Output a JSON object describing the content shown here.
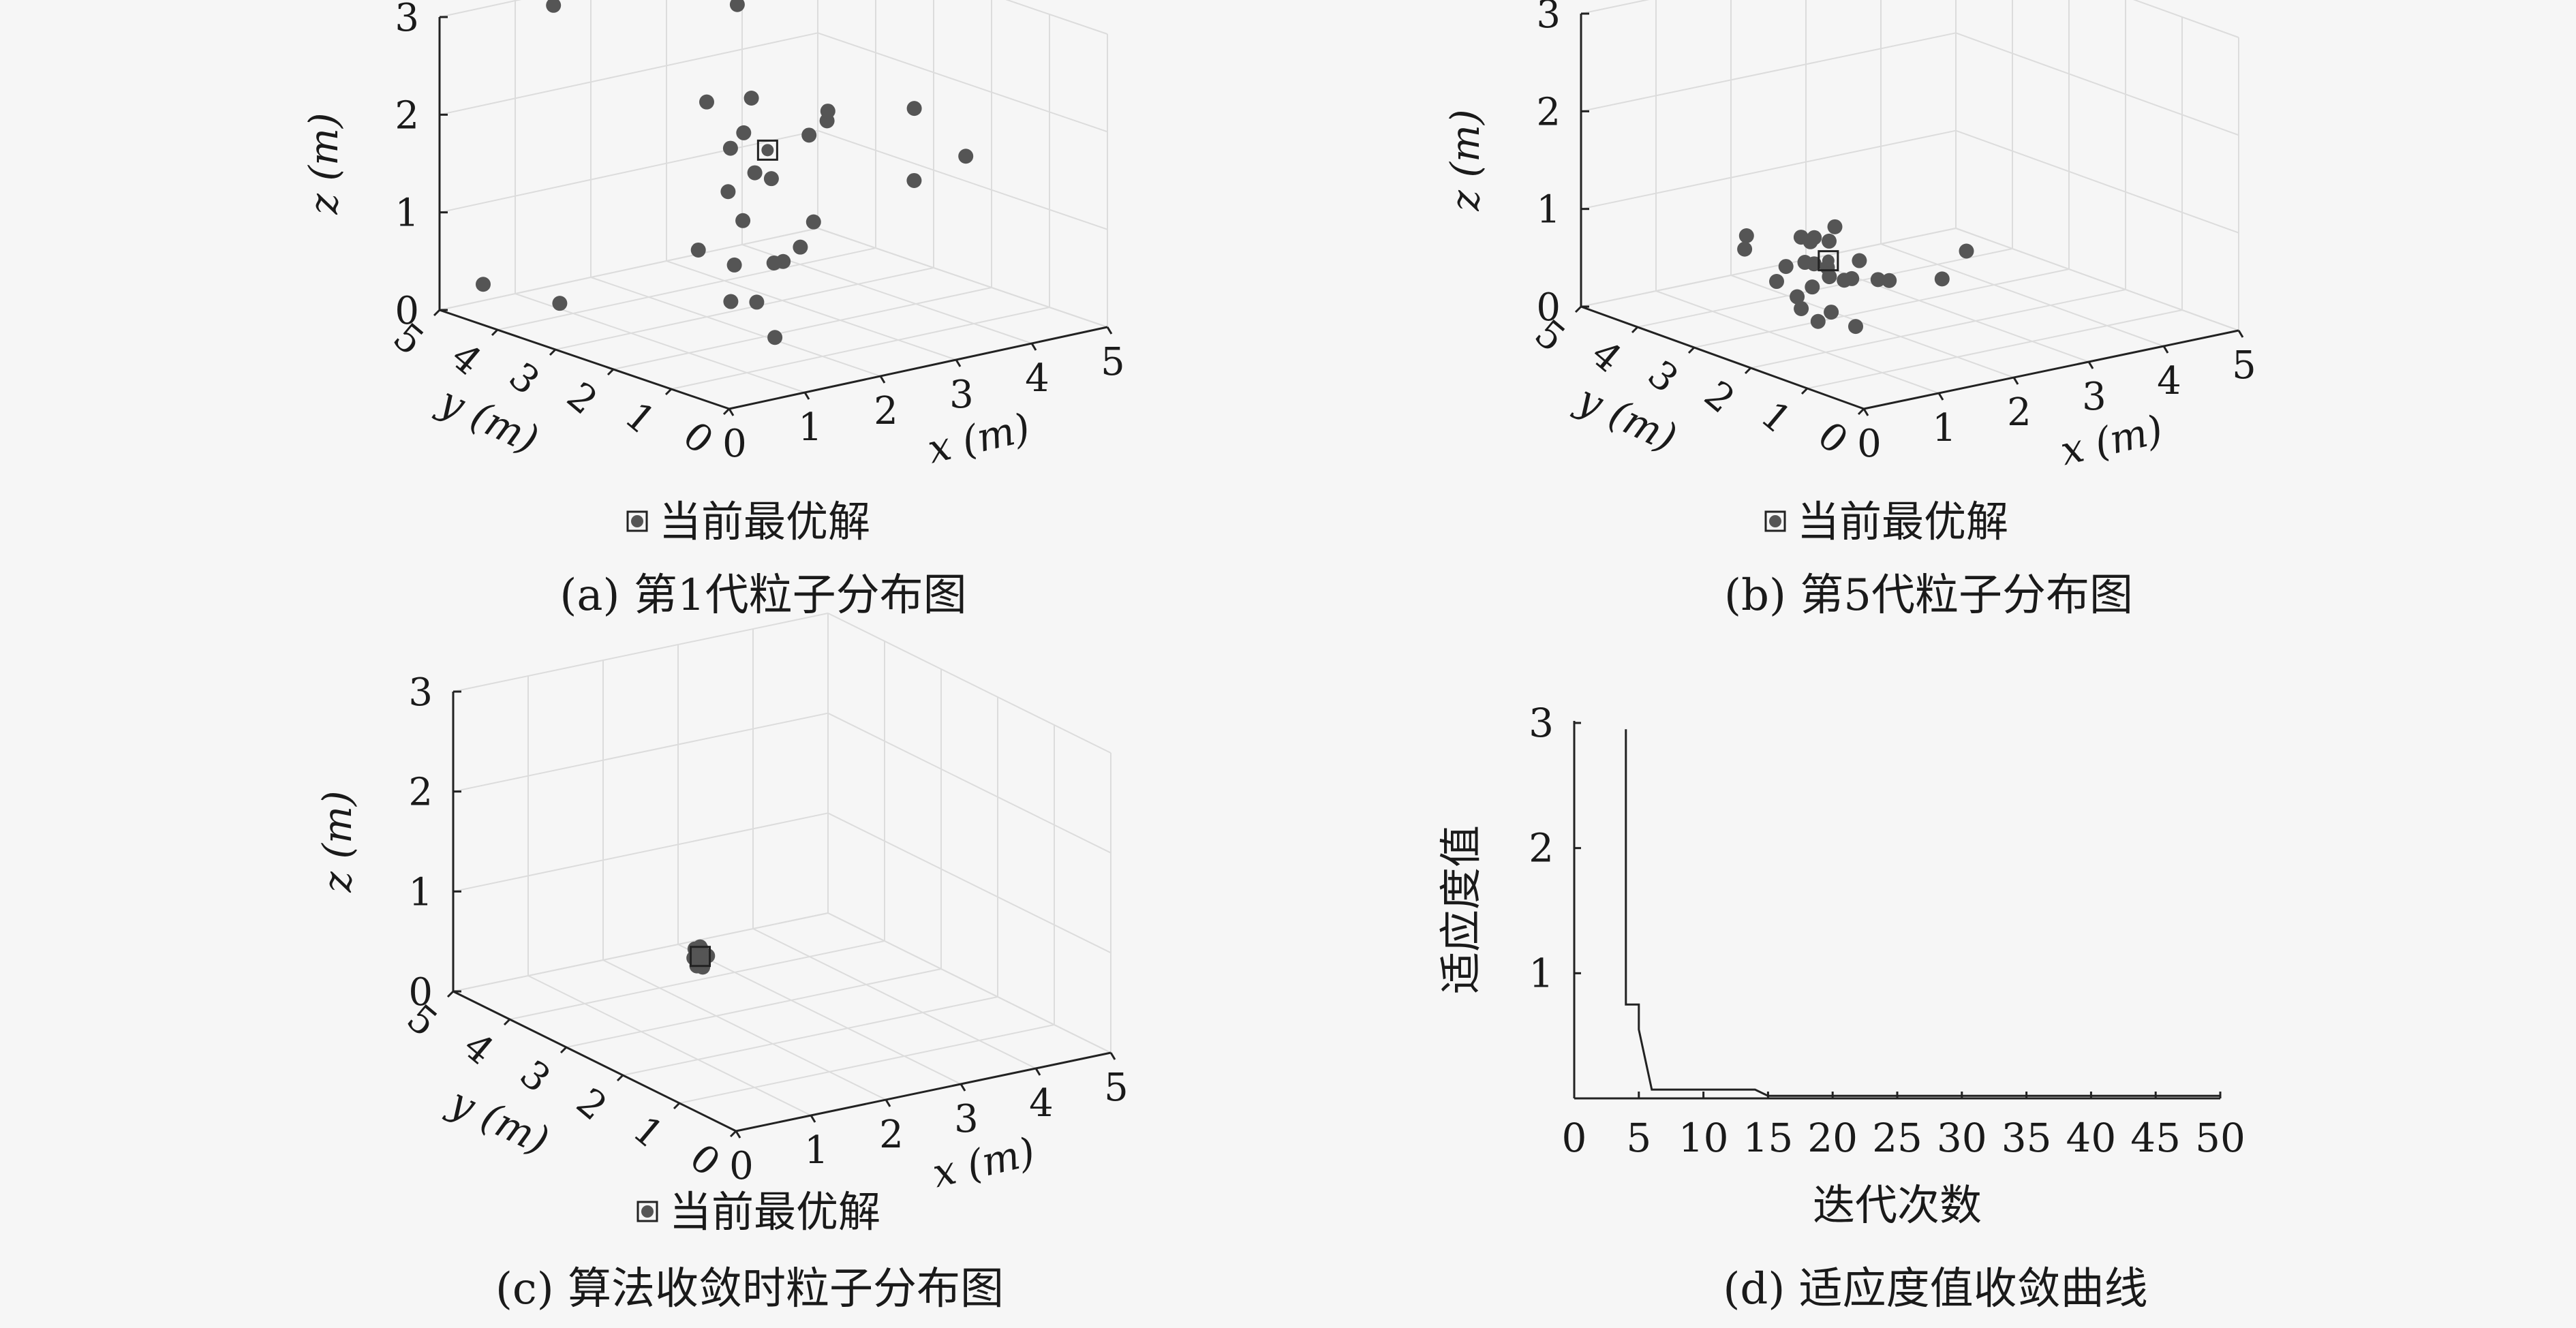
{
  "panels": [
    {
      "caption": "(a) 第1代粒子分布图",
      "legend": "当前最优解",
      "x_label": "x (m)",
      "y_label": "y (m)",
      "z_label": "z (m)",
      "ticks_xy": [
        "0",
        "1",
        "2",
        "3",
        "4",
        "5"
      ],
      "ticks_z": [
        "0",
        "1",
        "2",
        "3"
      ]
    },
    {
      "caption": "(b) 第5代粒子分布图",
      "legend": "当前最优解",
      "x_label": "x (m)",
      "y_label": "y (m)",
      "z_label": "z (m)",
      "ticks_xy": [
        "0",
        "1",
        "2",
        "3",
        "4",
        "5"
      ],
      "ticks_z": [
        "0",
        "1",
        "2",
        "3"
      ]
    },
    {
      "caption": "(c) 算法收敛时粒子分布图",
      "legend": "当前最优解",
      "x_label": "x (m)",
      "y_label": "y (m)",
      "z_label": "z (m)",
      "ticks_xy": [
        "0",
        "1",
        "2",
        "3",
        "4",
        "5"
      ],
      "ticks_z": [
        "0",
        "1",
        "2",
        "3"
      ]
    },
    {
      "caption": "(d) 适应度值收敛曲线",
      "x_label": "迭代次数",
      "y_label": "适应度值",
      "x_ticks": [
        "0",
        "5",
        "10",
        "15",
        "20",
        "25",
        "30",
        "35",
        "40",
        "45",
        "50"
      ],
      "y_ticks": [
        "1",
        "2",
        "3"
      ]
    }
  ],
  "chart_data": [
    {
      "type": "scatter",
      "title": "(a) 第1代粒子分布图",
      "xlabel": "x (m)",
      "ylabel": "y (m)",
      "zlabel": "z (m)",
      "xlim": [
        0,
        5
      ],
      "ylim": [
        0,
        5
      ],
      "zlim": [
        0,
        3
      ],
      "grid": true,
      "legend": "当前最优解",
      "colors": {
        "points": "#555555"
      },
      "points": [
        [
          1.2,
          4.6,
          3.0
        ],
        [
          3.4,
          4.3,
          2.7
        ],
        [
          1.6,
          0.4,
          2.6
        ],
        [
          2.3,
          1.3,
          2.4
        ],
        [
          2.6,
          0.2,
          2.6
        ],
        [
          0.6,
          0.4,
          3.0
        ],
        [
          0.4,
          0.5,
          2.5
        ],
        [
          2.0,
          3.0,
          2.2
        ],
        [
          1.8,
          2.1,
          2.1
        ],
        [
          3.2,
          2.8,
          1.7
        ],
        [
          1.4,
          1.1,
          1.9
        ],
        [
          1.1,
          1.2,
          1.5
        ],
        [
          2.1,
          2.3,
          1.6
        ],
        [
          2.8,
          2.2,
          1.0
        ],
        [
          0.9,
          0.7,
          0.8
        ],
        [
          1.6,
          2.0,
          0.8
        ],
        [
          0.5,
          4.9,
          0.2
        ],
        [
          1.9,
          2.5,
          1.4
        ],
        [
          1.2,
          2.1,
          1.0
        ],
        [
          1.4,
          0.6,
          1.3
        ],
        [
          3.7,
          3.9,
          0.1
        ],
        [
          0.9,
          4.1,
          0.1
        ],
        [
          1.4,
          1.8,
          0.5
        ],
        [
          2.2,
          2.1,
          0.7
        ],
        [
          1.6,
          1.3,
          0.2
        ],
        [
          4.2,
          1.4,
          1.6
        ],
        [
          3.9,
          1.9,
          1.3
        ]
      ],
      "best": [
        1.35,
        1.1,
        2.2
      ]
    },
    {
      "type": "scatter",
      "title": "(b) 第5代粒子分布图",
      "xlabel": "x (m)",
      "ylabel": "y (m)",
      "zlabel": "z (m)",
      "xlim": [
        0,
        5
      ],
      "ylim": [
        0,
        5
      ],
      "zlim": [
        0,
        3
      ],
      "grid": true,
      "legend": "当前最优解",
      "colors": {
        "points": "#555555"
      },
      "points": [
        [
          1.2,
          2.7,
          1.0
        ],
        [
          1.3,
          2.6,
          1.0
        ],
        [
          1.4,
          2.8,
          0.9
        ],
        [
          1.1,
          2.5,
          0.8
        ],
        [
          1.5,
          2.5,
          1.1
        ],
        [
          1.6,
          3.0,
          0.6
        ],
        [
          1.0,
          3.4,
          0.9
        ],
        [
          0.9,
          3.3,
          0.8
        ],
        [
          1.3,
          3.1,
          0.6
        ],
        [
          1.5,
          2.9,
          0.4
        ],
        [
          1.8,
          2.6,
          0.5
        ],
        [
          2.0,
          2.4,
          0.5
        ],
        [
          2.3,
          2.6,
          0.4
        ],
        [
          2.1,
          1.4,
          0.7
        ],
        [
          2.5,
          1.5,
          0.9
        ],
        [
          1.3,
          2.3,
          0.3
        ],
        [
          1.4,
          2.0,
          0.2
        ],
        [
          1.2,
          2.4,
          0.2
        ],
        [
          0.9,
          2.3,
          0.4
        ],
        [
          1.7,
          2.6,
          0.5
        ],
        [
          1.6,
          3.3,
          0.2
        ],
        [
          1.1,
          3.0,
          0.5
        ],
        [
          1.6,
          2.2,
          0.8
        ],
        [
          1.8,
          3.0,
          0.8
        ],
        [
          1.4,
          2.5,
          0.7
        ],
        [
          1.2,
          2.2,
          0.7
        ]
      ],
      "best": [
        1.45,
        2.55,
        0.75
      ]
    },
    {
      "type": "scatter",
      "title": "(c) 算法收敛时粒子分布图",
      "xlabel": "x (m)",
      "ylabel": "y (m)",
      "zlabel": "z (m)",
      "xlim": [
        0,
        5
      ],
      "ylim": [
        0,
        5
      ],
      "zlim": [
        0,
        3
      ],
      "grid": true,
      "legend": "当前最优解",
      "colors": {
        "points": "#555555"
      },
      "points": [
        [
          1.47,
          2.62,
          0.78
        ],
        [
          1.52,
          2.58,
          0.8
        ],
        [
          1.5,
          2.65,
          0.74
        ],
        [
          1.44,
          2.6,
          0.7
        ],
        [
          1.55,
          2.63,
          0.76
        ],
        [
          1.48,
          2.55,
          0.82
        ],
        [
          1.53,
          2.68,
          0.72
        ],
        [
          1.46,
          2.66,
          0.85
        ],
        [
          1.51,
          2.59,
          0.68
        ],
        [
          1.49,
          2.61,
          0.88
        ],
        [
          1.56,
          2.57,
          0.79
        ],
        [
          1.43,
          2.64,
          0.77
        ],
        [
          1.54,
          2.66,
          0.84
        ],
        [
          1.45,
          2.57,
          0.73
        ]
      ],
      "best": [
        1.5,
        2.62,
        0.78
      ]
    },
    {
      "type": "line",
      "title": "(d) 适应度值收敛曲线",
      "xlabel": "迭代次数",
      "ylabel": "适应度值",
      "xlim": [
        0,
        50
      ],
      "ylim": [
        0,
        3
      ],
      "grid": false,
      "colors": {
        "line": "#222222"
      },
      "x": [
        4,
        4,
        4.2,
        5,
        5,
        6,
        6.2,
        10,
        14,
        15,
        50
      ],
      "y": [
        2.95,
        0.75,
        0.75,
        0.75,
        0.55,
        0.07,
        0.07,
        0.07,
        0.07,
        0.02,
        0.02
      ]
    }
  ]
}
